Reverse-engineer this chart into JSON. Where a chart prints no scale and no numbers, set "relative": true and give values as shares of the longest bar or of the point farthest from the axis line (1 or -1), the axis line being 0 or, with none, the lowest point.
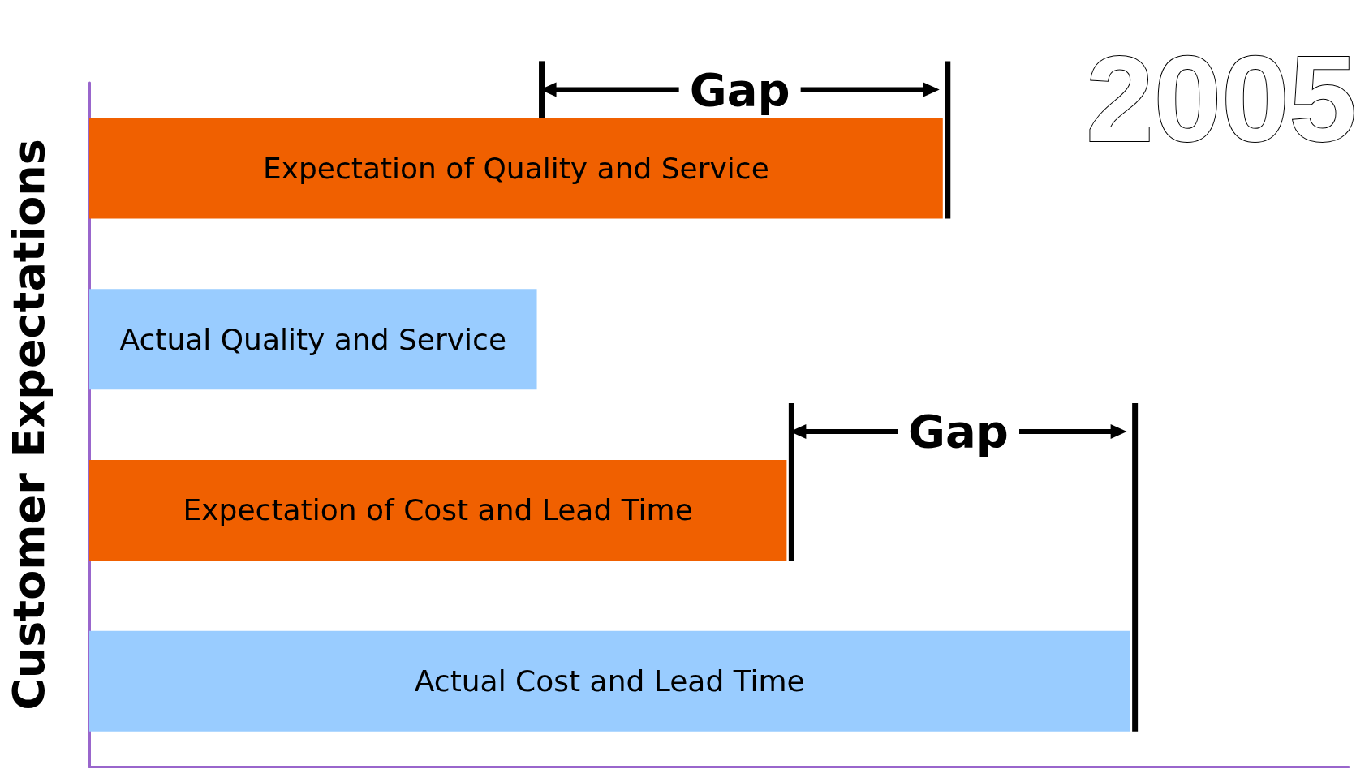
{
  "chart_data": {
    "type": "bar",
    "orientation": "horizontal",
    "relative": true,
    "title": "2005",
    "ylabel": "Customer Expectations",
    "categories": [
      "Expectation of Quality and Service",
      "Actual Quality and Service",
      "Expectation of Cost and Lead Time",
      "Actual Cost and Lead Time"
    ],
    "values": [
      0.82,
      0.43,
      0.67,
      1
    ],
    "colors": [
      "#f06000",
      "#99ccff",
      "#f06000",
      "#99ccff"
    ],
    "annotations": [
      "Gap",
      "Gap"
    ],
    "grid": false
  }
}
